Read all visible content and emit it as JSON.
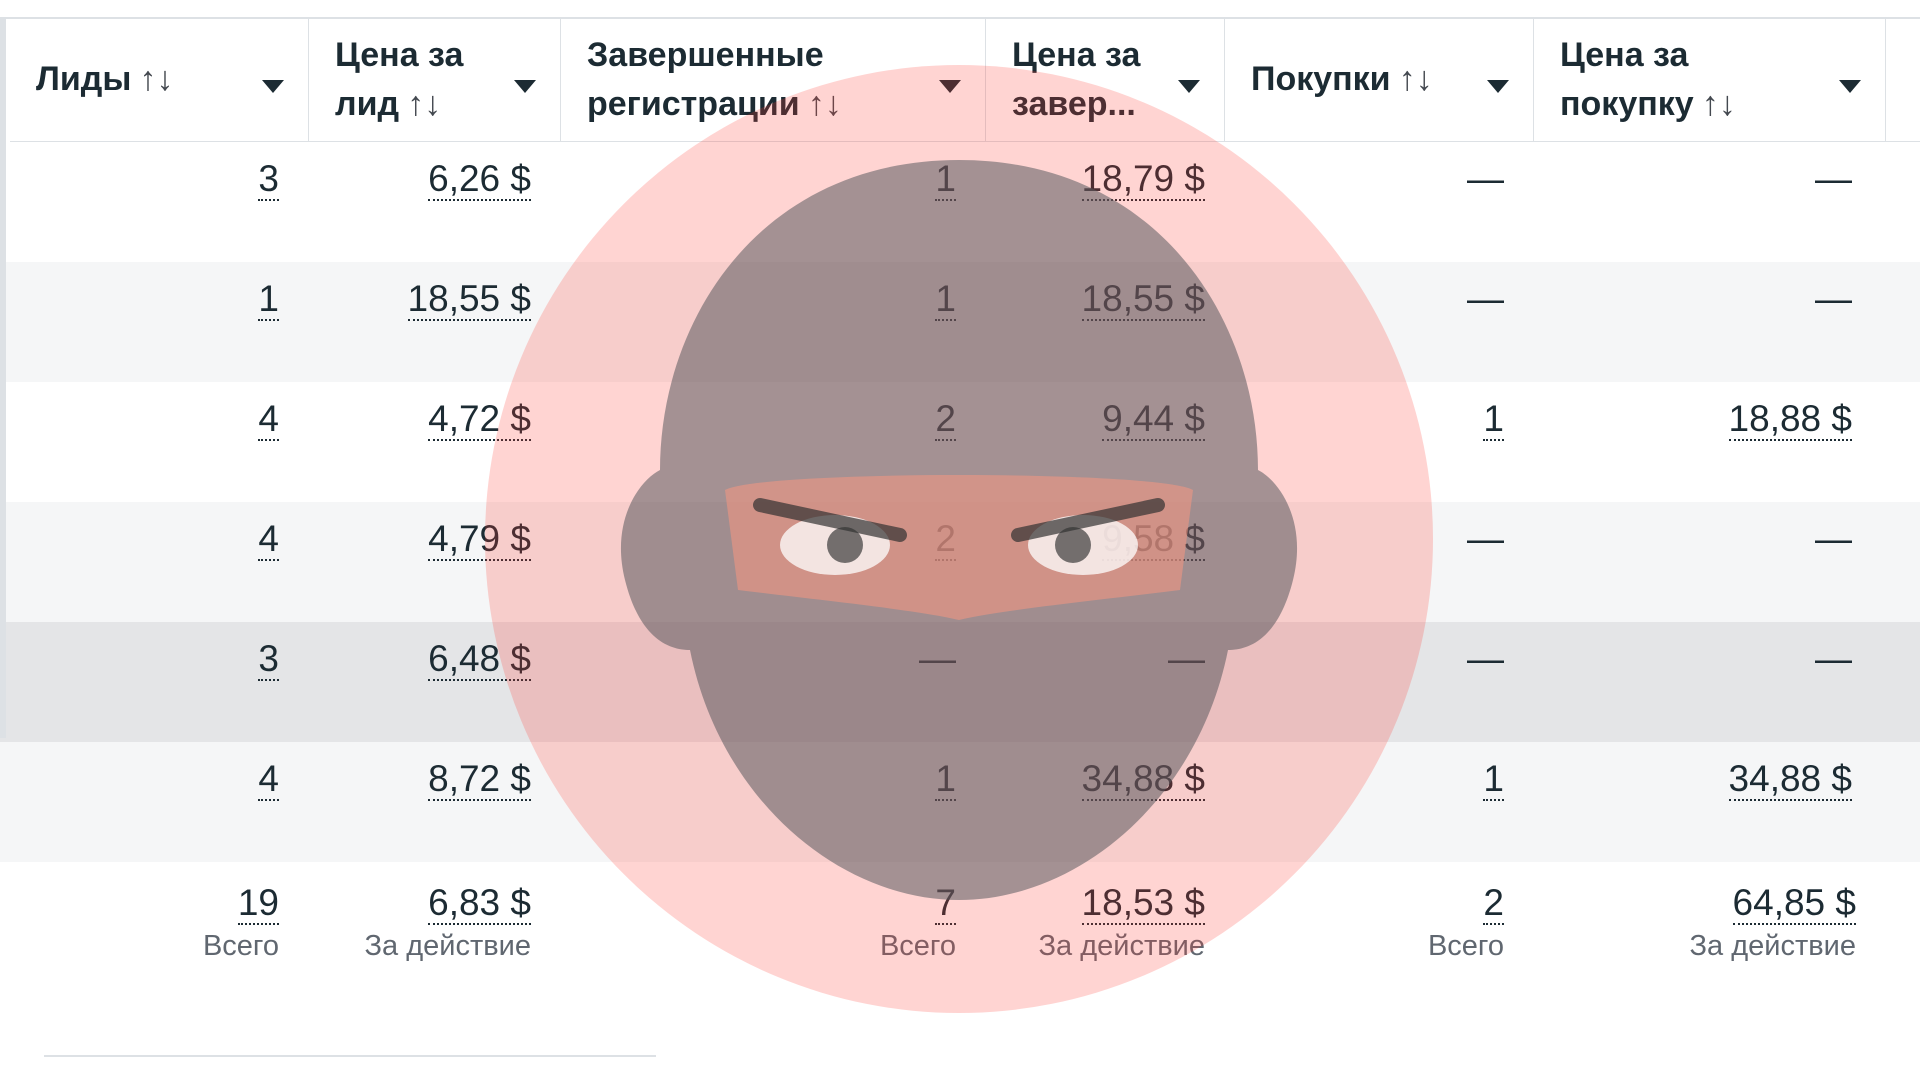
{
  "table": {
    "headers": [
      "Лиды",
      "Цена за лид",
      "Завершенные регистрации",
      "Цена за завер...",
      "Покупки",
      "Цена за покупку"
    ],
    "sort_icon": "↑↓",
    "rows": [
      [
        "3",
        "6,26 $",
        "1",
        "18,79 $",
        "—",
        "—"
      ],
      [
        "1",
        "18,55 $",
        "1",
        "18,55 $",
        "—",
        "—"
      ],
      [
        "4",
        "4,72 $",
        "2",
        "9,44 $",
        "1",
        "18,88 $"
      ],
      [
        "4",
        "4,79 $",
        "2",
        "9,58 $",
        "—",
        "—"
      ],
      [
        "3",
        "6,48 $",
        "—",
        "—",
        "—",
        "—"
      ],
      [
        "4",
        "8,72 $",
        "1",
        "34,88 $",
        "1",
        "34,88 $"
      ]
    ],
    "totals": {
      "values": [
        "19",
        "6,83 $",
        "7",
        "18,53 $",
        "2",
        "64,85 $"
      ],
      "labels": [
        "Всего",
        "За действие",
        "Всего",
        "За действие",
        "Всего",
        "За действие"
      ]
    }
  }
}
